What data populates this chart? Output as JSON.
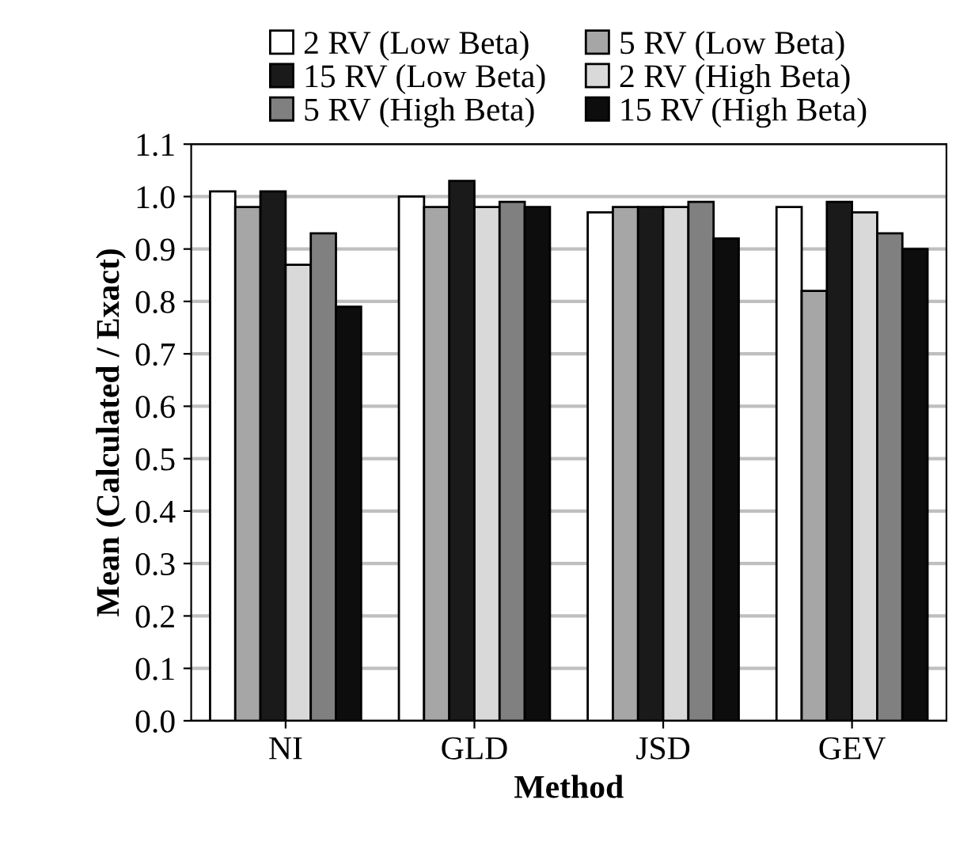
{
  "chart_data": {
    "type": "bar",
    "xlabel": "Method",
    "ylabel": "Mean (Calculated / Exact)",
    "categories": [
      "NI",
      "GLD",
      "JSD",
      "GEV"
    ],
    "series": [
      {
        "name": "2 RV (Low Beta)",
        "color": "#ffffff",
        "values": [
          1.01,
          1.0,
          0.97,
          0.98
        ]
      },
      {
        "name": "5 RV (Low Beta)",
        "color": "#a6a6a6",
        "values": [
          0.98,
          0.98,
          0.98,
          0.82
        ]
      },
      {
        "name": "15 RV (Low Beta)",
        "color": "#1a1a1a",
        "values": [
          1.01,
          1.03,
          0.98,
          0.99
        ]
      },
      {
        "name": "2 RV (High Beta)",
        "color": "#d9d9d9",
        "values": [
          0.87,
          0.98,
          0.98,
          0.97
        ]
      },
      {
        "name": "5 RV (High Beta)",
        "color": "#808080",
        "values": [
          0.93,
          0.99,
          0.99,
          0.93
        ]
      },
      {
        "name": "15 RV (High Beta)",
        "color": "#0d0d0d",
        "values": [
          0.79,
          0.98,
          0.92,
          0.9
        ]
      }
    ],
    "ylim": [
      0,
      1.1
    ],
    "yticks": [
      {
        "value": 0,
        "label": "0.0"
      },
      {
        "value": 0.1,
        "label": "0.1"
      },
      {
        "value": 0.2,
        "label": "0.2"
      },
      {
        "value": 0.3,
        "label": "0.3"
      },
      {
        "value": 0.4,
        "label": "0.4"
      },
      {
        "value": 0.5,
        "label": "0.5"
      },
      {
        "value": 0.6,
        "label": "0.6"
      },
      {
        "value": 0.7,
        "label": "0.7"
      },
      {
        "value": 0.8,
        "label": "0.8"
      },
      {
        "value": 0.9,
        "label": "0.9"
      },
      {
        "value": 1.0,
        "label": "1.0"
      },
      {
        "value": 1.1,
        "label": "1.1"
      }
    ],
    "grid": "y",
    "legend": "top"
  }
}
